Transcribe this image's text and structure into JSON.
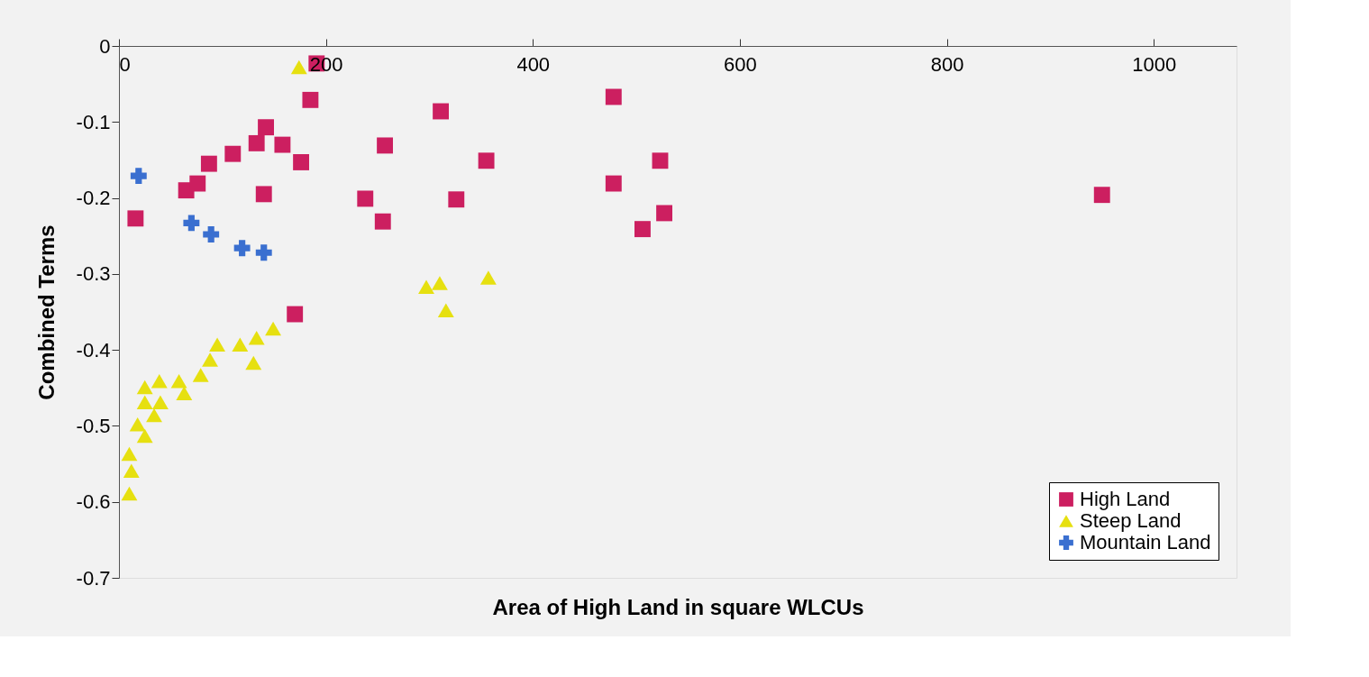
{
  "chart_data": {
    "type": "scatter",
    "xlabel": "Area of High Land in square WLCUs",
    "ylabel": "Combined Terms",
    "xlim": [
      0,
      1080
    ],
    "xticks": [
      0,
      200,
      400,
      600,
      800,
      1000
    ],
    "ylim": [
      -0.7,
      0
    ],
    "yticks": [
      -0.7,
      -0.6,
      -0.5,
      -0.4,
      -0.3,
      -0.2,
      -0.1,
      0
    ],
    "grid": false,
    "legend": "bottom right",
    "series": [
      {
        "name": "High Land",
        "color": "#cc1f60",
        "marker": "square",
        "x": [
          16,
          65,
          76,
          87,
          110,
          133,
          142,
          158,
          176,
          140,
          191,
          185,
          170,
          238,
          255,
          257,
          311,
          326,
          355,
          478,
          478,
          523,
          527,
          506,
          950
        ],
        "values": [
          -0.227,
          -0.19,
          -0.181,
          -0.155,
          -0.142,
          -0.128,
          -0.107,
          -0.13,
          -0.153,
          -0.195,
          -0.023,
          -0.071,
          -0.353,
          -0.201,
          -0.231,
          -0.131,
          -0.086,
          -0.202,
          -0.151,
          -0.067,
          -0.181,
          -0.151,
          -0.22,
          -0.241,
          -0.196
        ]
      },
      {
        "name": "Steep Land",
        "color": "#e6e010",
        "marker": "triangle",
        "x": [
          174,
          10,
          12,
          10,
          25,
          18,
          34,
          25,
          40,
          25,
          39,
          58,
          63,
          79,
          88,
          95,
          117,
          130,
          133,
          149,
          297,
          310,
          316,
          357
        ],
        "values": [
          -0.028,
          -0.589,
          -0.559,
          -0.537,
          -0.513,
          -0.498,
          -0.486,
          -0.469,
          -0.469,
          -0.449,
          -0.441,
          -0.441,
          -0.457,
          -0.433,
          -0.413,
          -0.393,
          -0.393,
          -0.417,
          -0.384,
          -0.372,
          -0.317,
          -0.312,
          -0.348,
          -0.305
        ]
      },
      {
        "name": "Mountain Land",
        "color": "#3a6fd0",
        "marker": "cross",
        "x": [
          19,
          70,
          89,
          119,
          140
        ],
        "values": [
          -0.171,
          -0.233,
          -0.248,
          -0.266,
          -0.272
        ]
      }
    ]
  }
}
